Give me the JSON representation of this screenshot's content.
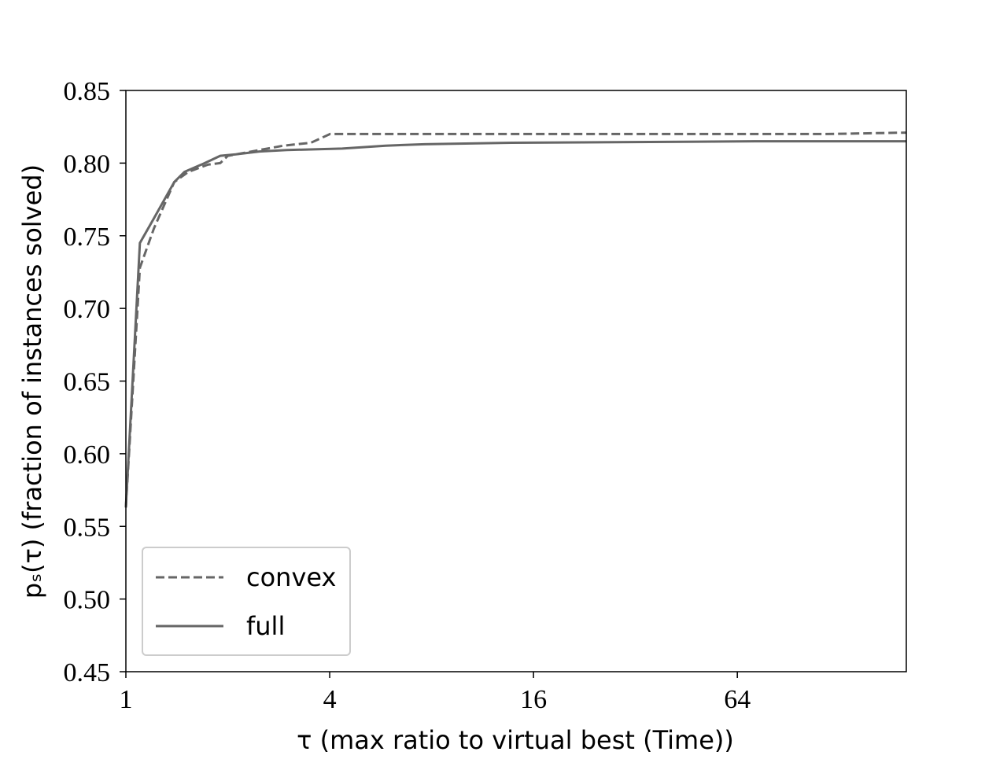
{
  "chart_data": {
    "type": "line",
    "xlabel": "τ (max ratio to virtual best (Time))",
    "ylabel": "pₛ(τ) (fraction of instances solved)",
    "xscale": "log2",
    "xlim": [
      1,
      202
    ],
    "xticks": [
      1,
      4,
      16,
      64
    ],
    "ylim": [
      0.45,
      0.85
    ],
    "yticks": [
      0.45,
      {
        "value": 0.5,
        "label": "0.50"
      },
      0.55,
      {
        "value": 0.6,
        "label": "0.60"
      },
      0.65,
      {
        "value": 0.7,
        "label": "0.70"
      },
      0.75,
      {
        "value": 0.8,
        "label": "0.80"
      },
      0.85
    ],
    "legend": "lower left",
    "series": [
      {
        "name": "convex",
        "color": "#666666",
        "style": "dashed",
        "x": [
          1,
          1.1,
          1.21,
          1.39,
          1.53,
          1.75,
          1.9,
          2.0,
          2.48,
          2.92,
          3.52,
          4.01,
          117,
          202
        ],
        "values": [
          0.563,
          0.728,
          0.755,
          0.787,
          0.794,
          0.799,
          0.8,
          0.805,
          0.809,
          0.812,
          0.814,
          0.82,
          0.82,
          0.821
        ]
      },
      {
        "name": "full",
        "color": "#666666",
        "style": "solid",
        "x": [
          1,
          1.1,
          1.21,
          1.39,
          1.49,
          1.71,
          1.9,
          2.11,
          2.48,
          2.99,
          4.36,
          5.85,
          7.62,
          13.8,
          72,
          202
        ],
        "values": [
          0.563,
          0.745,
          0.762,
          0.787,
          0.794,
          0.8,
          0.805,
          0.806,
          0.808,
          0.809,
          0.81,
          0.812,
          0.813,
          0.814,
          0.815,
          0.815
        ]
      }
    ]
  }
}
